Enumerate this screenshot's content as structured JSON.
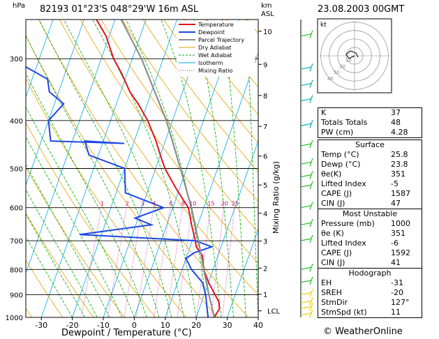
{
  "header": {
    "station": "82193  01°23'S  048°29'W     16m  ASL",
    "date": "23.08.2003  00GMT",
    "unit_left": "hPa",
    "unit_right_km": "km",
    "unit_right_asl": "ASL"
  },
  "colors": {
    "temperature": "#e0141e",
    "dewpoint": "#1e46e6",
    "parcel": "#8c8c8c",
    "dry_adiabat": "#e6a000",
    "wet_adiabat": "#00aa00",
    "isotherm": "#00a8e0",
    "mixing_ratio": "#c8008c",
    "wind_barb": "#20c020"
  },
  "chart_data": {
    "type": "line",
    "xlabel": "Dewpoint / Temperature (°C)",
    "ylabel": "hPa",
    "xlim": [
      -35,
      40
    ],
    "ylim": [
      1000,
      250
    ],
    "x_ticks": [
      -30,
      -20,
      -10,
      0,
      10,
      20,
      30,
      40
    ],
    "pressure_levels": [
      300,
      400,
      500,
      600,
      700,
      800,
      900,
      1000
    ],
    "height_km_ticks": [
      "1",
      "2",
      "3",
      "4",
      "5",
      "6",
      "7",
      "8",
      "9",
      "10"
    ],
    "height_km_pressures": [
      898,
      795,
      701,
      616,
      540,
      472,
      411,
      356,
      308,
      264
    ],
    "lcl_label": "LCL",
    "lcl_pressure": 970,
    "mixing_ratio_axis_label": "Mixing Ratio (g/kg)",
    "mixing_ratio_labels": [
      "1",
      "2",
      "3",
      "4",
      "6",
      "8",
      "10",
      "15",
      "20",
      "25"
    ],
    "legend": [
      "Temperature",
      "Dewpoint",
      "Parcel Trajectory",
      "Dry Adiabat",
      "Wet Adiabat",
      "Isotherm",
      "Mixing Ratio"
    ],
    "series": [
      {
        "name": "Temperature",
        "points": [
          [
            1000,
            25.8
          ],
          [
            960,
            26.5
          ],
          [
            930,
            25.5
          ],
          [
            900,
            23.5
          ],
          [
            850,
            20
          ],
          [
            800,
            17
          ],
          [
            750,
            15
          ],
          [
            720,
            12
          ],
          [
            700,
            11
          ],
          [
            650,
            8
          ],
          [
            600,
            5
          ],
          [
            550,
            -1
          ],
          [
            500,
            -7
          ],
          [
            470,
            -10
          ],
          [
            440,
            -13
          ],
          [
            400,
            -18
          ],
          [
            370,
            -23
          ],
          [
            350,
            -27
          ],
          [
            320,
            -32
          ],
          [
            300,
            -36
          ],
          [
            270,
            -41
          ],
          [
            250,
            -46
          ]
        ]
      },
      {
        "name": "Dewpoint",
        "points": [
          [
            1000,
            23.8
          ],
          [
            960,
            22.5
          ],
          [
            930,
            21.5
          ],
          [
            900,
            20.5
          ],
          [
            850,
            18
          ],
          [
            800,
            13
          ],
          [
            760,
            10
          ],
          [
            740,
            12
          ],
          [
            720,
            17
          ],
          [
            700,
            11
          ],
          [
            680,
            -27
          ],
          [
            650,
            -5
          ],
          [
            630,
            -11
          ],
          [
            600,
            -3
          ],
          [
            560,
            -17
          ],
          [
            500,
            -20
          ],
          [
            470,
            -33
          ],
          [
            440,
            -36
          ],
          [
            445,
            -23
          ],
          [
            440,
            -47
          ],
          [
            400,
            -50
          ],
          [
            370,
            -47
          ],
          [
            350,
            -53
          ],
          [
            330,
            -55
          ],
          [
            300,
            -69
          ],
          [
            250,
            -76
          ]
        ]
      },
      {
        "name": "Parcel Trajectory",
        "points": [
          [
            1000,
            25.8
          ],
          [
            970,
            24.6
          ],
          [
            900,
            21.5
          ],
          [
            800,
            17.0
          ],
          [
            700,
            12.0
          ],
          [
            600,
            6.0
          ],
          [
            500,
            -2.0
          ],
          [
            400,
            -12.0
          ],
          [
            300,
            -27.0
          ],
          [
            250,
            -38.0
          ]
        ]
      }
    ],
    "hodograph": {
      "ring_labels": [
        "10",
        "20",
        "30",
        "40"
      ],
      "unit": "kt"
    },
    "wind_levels_hpa": [
      270,
      315,
      340,
      365,
      410,
      450,
      490,
      520,
      545,
      600,
      650,
      700,
      800,
      850,
      900,
      935,
      960,
      990
    ]
  },
  "indices": {
    "top": [
      {
        "label": "K",
        "value": "37"
      },
      {
        "label": "Totals Totals",
        "value": "48"
      },
      {
        "label": "PW (cm)",
        "value": "4.28"
      }
    ],
    "surface": {
      "title": "Surface",
      "rows": [
        {
          "label": "Temp (°C)",
          "value": "25.8"
        },
        {
          "label": "Dewp (°C)",
          "value": "23.8"
        },
        {
          "label": "θe(K)",
          "value": "351"
        },
        {
          "label": "Lifted Index",
          "value": "-5"
        },
        {
          "label": "CAPE (J)",
          "value": "1587"
        },
        {
          "label": "CIN (J)",
          "value": "47"
        }
      ]
    },
    "most_unstable": {
      "title": "Most Unstable",
      "rows": [
        {
          "label": "Pressure (mb)",
          "value": "1000"
        },
        {
          "label": "θe (K)",
          "value": "351"
        },
        {
          "label": "Lifted Index",
          "value": "-6"
        },
        {
          "label": "CAPE (J)",
          "value": "1592"
        },
        {
          "label": "CIN (J)",
          "value": "41"
        }
      ]
    },
    "hodograph": {
      "title": "Hodograph",
      "rows": [
        {
          "label": "EH",
          "value": "-31"
        },
        {
          "label": "SREH",
          "value": "-20"
        },
        {
          "label": "StmDir",
          "value": "127°"
        },
        {
          "label": "StmSpd (kt)",
          "value": "11"
        }
      ]
    }
  },
  "footer": {
    "credit": "© WeatherOnline"
  }
}
